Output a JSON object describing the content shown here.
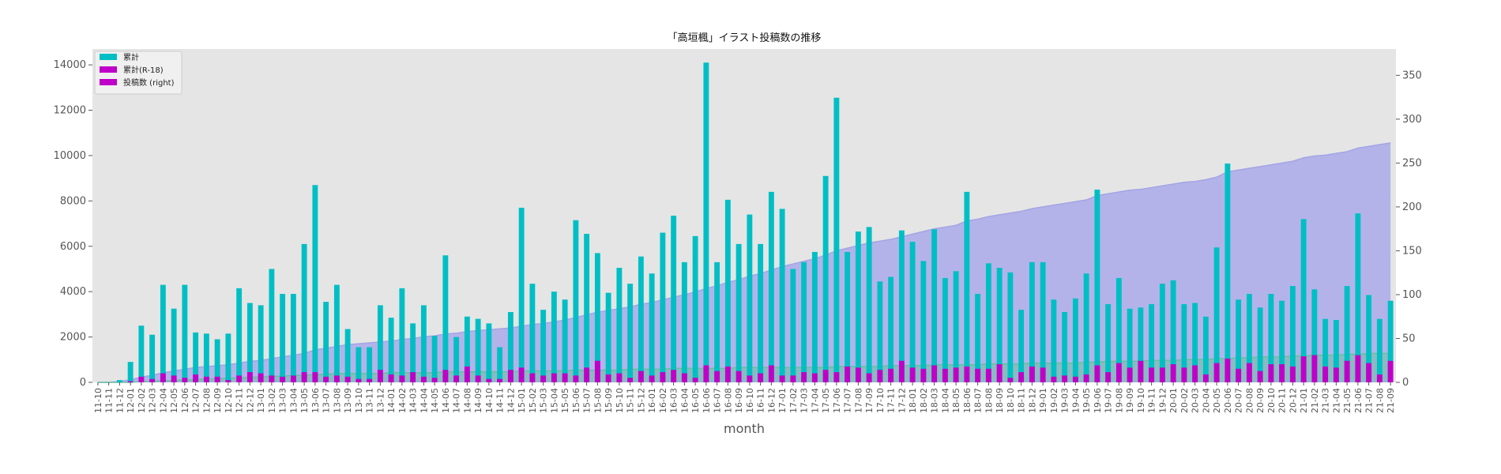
{
  "chart_data": {
    "type": "bar",
    "title": "「高垣楓」イラスト投稿数の推移",
    "xlabel": "month",
    "ylabel": "",
    "ylim": [
      0,
      14700
    ],
    "y2lim": [
      0,
      380
    ],
    "yticks": [
      0,
      2000,
      4000,
      6000,
      8000,
      10000,
      12000,
      14000
    ],
    "y2ticks": [
      0,
      50,
      100,
      150,
      200,
      250,
      300,
      350
    ],
    "grid": false,
    "legend_position": "top-left",
    "colors": {
      "cumulative": "#00bfc4",
      "cumulative_r18": "#c000c8",
      "posts_right": "#c000c8",
      "area_cumulative": "#b3b3ea",
      "area_cumulative_line": "#a4a4e4",
      "area_r18": "#69bfa0",
      "plot_bg": "#e5e5e5"
    },
    "categories": [
      "11-10",
      "11-11",
      "11-12",
      "12-01",
      "12-02",
      "12-03",
      "12-04",
      "12-05",
      "12-06",
      "12-07",
      "12-08",
      "12-09",
      "12-10",
      "12-11",
      "12-12",
      "13-01",
      "13-02",
      "13-03",
      "13-04",
      "13-05",
      "13-06",
      "13-07",
      "13-08",
      "13-09",
      "13-10",
      "13-11",
      "13-12",
      "14-01",
      "14-02",
      "14-03",
      "14-04",
      "14-05",
      "14-06",
      "14-07",
      "14-08",
      "14-09",
      "14-10",
      "14-11",
      "14-12",
      "15-01",
      "15-02",
      "15-03",
      "15-04",
      "15-05",
      "15-06",
      "15-07",
      "15-08",
      "15-09",
      "15-10",
      "15-11",
      "15-12",
      "16-01",
      "16-02",
      "16-03",
      "16-04",
      "16-05",
      "16-06",
      "16-07",
      "16-08",
      "16-09",
      "16-10",
      "16-11",
      "16-12",
      "17-01",
      "17-02",
      "17-03",
      "17-04",
      "17-05",
      "17-06",
      "17-07",
      "17-08",
      "17-09",
      "17-10",
      "17-11",
      "17-12",
      "18-01",
      "18-02",
      "18-03",
      "18-04",
      "18-05",
      "18-06",
      "18-07",
      "18-08",
      "18-09",
      "18-10",
      "18-11",
      "18-12",
      "19-01",
      "19-02",
      "19-03",
      "19-04",
      "19-05",
      "19-06",
      "19-07",
      "19-08",
      "19-09",
      "19-10",
      "19-11",
      "19-12",
      "20-01",
      "20-02",
      "20-03",
      "20-04",
      "20-05",
      "20-06",
      "20-07",
      "20-08",
      "20-09",
      "20-10",
      "20-11",
      "20-12",
      "21-01",
      "21-02",
      "21-03",
      "21-04",
      "21-05",
      "21-06",
      "21-07",
      "21-08",
      "21-09"
    ],
    "series": [
      {
        "name": "累計",
        "axis": "left",
        "kind": "bar",
        "values": [
          0,
          0,
          100,
          900,
          2500,
          2100,
          4300,
          3250,
          4300,
          2200,
          2150,
          1900,
          2150,
          4150,
          3500,
          3400,
          5000,
          3900,
          3900,
          6100,
          8700,
          3550,
          4300,
          2350,
          1550,
          1550,
          3400,
          2850,
          4150,
          2600,
          3400,
          2050,
          5600,
          2000,
          2900,
          2800,
          2600,
          1550,
          3100,
          7700,
          4350,
          3200,
          4000,
          3650,
          7150,
          6550,
          5700,
          3950,
          5050,
          4350,
          5550,
          4800,
          6600,
          7350,
          5300,
          6450,
          14100,
          5300,
          8050,
          6100,
          7400,
          6100,
          8400,
          7650,
          5000,
          5300,
          5750,
          9100,
          12550,
          5750,
          6650,
          6850,
          4450,
          4650,
          6700,
          6200,
          5350,
          6750,
          4600,
          4900,
          8400,
          3900,
          5250,
          5050,
          4850,
          3200,
          5300,
          5300,
          3650,
          3100,
          3700,
          4800,
          8500,
          3450,
          4600,
          3250,
          3300,
          3450,
          4350,
          4500,
          3450,
          3500,
          2900,
          5950,
          9650,
          3650,
          3900,
          3300,
          3900,
          3600,
          4250,
          7200,
          4100,
          2800,
          2750,
          4250,
          7450,
          3850,
          2800,
          3600
        ]
      },
      {
        "name": "累計(R-18)",
        "axis": "left",
        "kind": "bar",
        "values": [
          0,
          0,
          0,
          50,
          250,
          150,
          400,
          300,
          200,
          350,
          250,
          250,
          100,
          300,
          450,
          400,
          300,
          250,
          300,
          450,
          450,
          250,
          300,
          250,
          150,
          150,
          550,
          350,
          300,
          450,
          250,
          200,
          550,
          300,
          700,
          300,
          150,
          150,
          550,
          650,
          400,
          300,
          400,
          400,
          300,
          650,
          950,
          350,
          400,
          200,
          500,
          300,
          450,
          550,
          400,
          200,
          750,
          500,
          700,
          500,
          300,
          400,
          750,
          300,
          300,
          450,
          400,
          550,
          450,
          700,
          650,
          400,
          550,
          600,
          950,
          650,
          600,
          750,
          600,
          650,
          700,
          600,
          600,
          800,
          200,
          450,
          700,
          650,
          250,
          300,
          250,
          350,
          750,
          450,
          850,
          650,
          950,
          650,
          650,
          800,
          650,
          750,
          350,
          850,
          1050,
          600,
          850,
          500,
          800,
          800,
          700,
          1150,
          1200,
          700,
          650,
          950,
          1200,
          850,
          350,
          950
        ]
      },
      {
        "name": "投稿数 (right)",
        "axis": "right",
        "kind": "area",
        "values": [
          0,
          0,
          1,
          3,
          6,
          8,
          11,
          13,
          15,
          17,
          18,
          19,
          20,
          22,
          24,
          25,
          27,
          29,
          31,
          33,
          37,
          39,
          41,
          43,
          44,
          45,
          46,
          47,
          49,
          50,
          52,
          53,
          55,
          56,
          58,
          59,
          60,
          61,
          62,
          64,
          66,
          67,
          69,
          71,
          74,
          77,
          80,
          82,
          84,
          86,
          89,
          91,
          94,
          97,
          100,
          103,
          107,
          110,
          114,
          117,
          121,
          124,
          128,
          132,
          135,
          138,
          141,
          145,
          150,
          153,
          156,
          159,
          161,
          163,
          166,
          169,
          172,
          175,
          177,
          179,
          184,
          186,
          189,
          191,
          193,
          195,
          198,
          200,
          202,
          204,
          206,
          208,
          213,
          215,
          217,
          219,
          220,
          222,
          224,
          226,
          228,
          229,
          231,
          234,
          240,
          242,
          244,
          246,
          248,
          250,
          252,
          256,
          258,
          259,
          261,
          263,
          267,
          269,
          271,
          273
        ]
      },
      {
        "name": "",
        "axis": "right",
        "kind": "area",
        "values": [
          0,
          0,
          0,
          0,
          1,
          1,
          2,
          2,
          3,
          3,
          4,
          4,
          5,
          5,
          6,
          6,
          7,
          7,
          8,
          8,
          9,
          9,
          10,
          10,
          10,
          10,
          10,
          11,
          11,
          11,
          11,
          11,
          12,
          12,
          12,
          12,
          12,
          12,
          12,
          13,
          13,
          13,
          13,
          13,
          14,
          14,
          14,
          14,
          14,
          15,
          15,
          15,
          15,
          16,
          16,
          16,
          16,
          16,
          16,
          17,
          17,
          17,
          17,
          17,
          17,
          17,
          17,
          17,
          18,
          18,
          18,
          18,
          18,
          19,
          19,
          19,
          19,
          20,
          20,
          20,
          20,
          20,
          21,
          21,
          21,
          21,
          22,
          22,
          22,
          22,
          22,
          23,
          23,
          24,
          24,
          24,
          24,
          25,
          25,
          25,
          26,
          26,
          26,
          27,
          27,
          28,
          28,
          29,
          29,
          29,
          30,
          30,
          31,
          31,
          31,
          32,
          32,
          33,
          33,
          33
        ]
      }
    ]
  }
}
